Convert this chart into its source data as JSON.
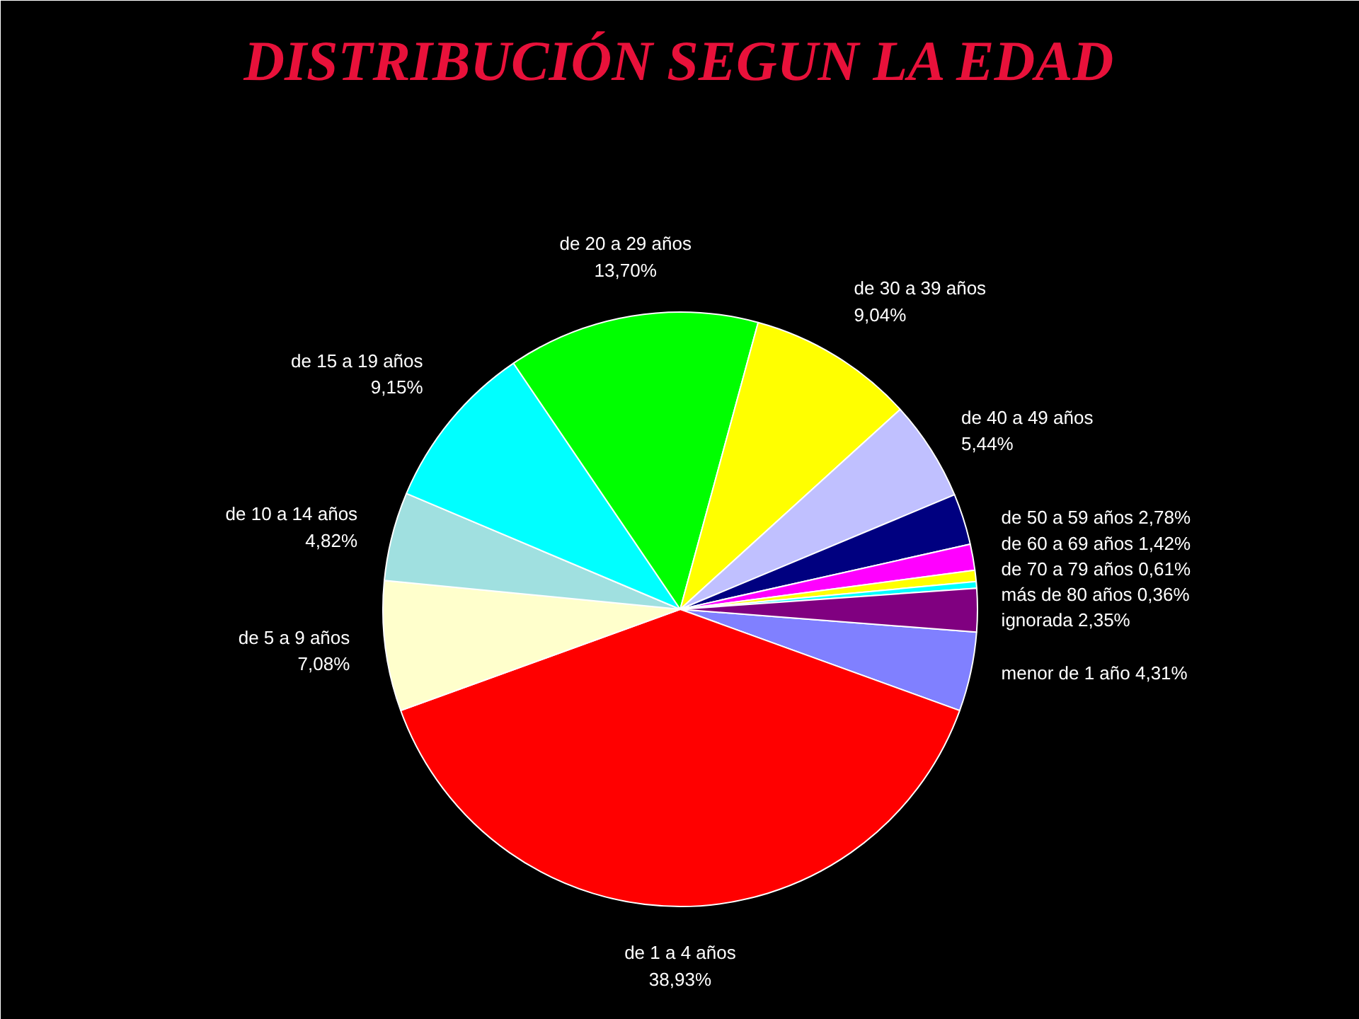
{
  "chart_data": {
    "type": "pie",
    "title": "DISTRIBUCIÓN SEGUN LA EDAD",
    "categories": [
      "menor de 1 año",
      "de 1 a 4 años",
      "de 5 a 9 años",
      "de 10 a 14 años",
      "de 15 a 19 años",
      "de 20 a 29 años",
      "de 30 a 39 años",
      "de 40 a 49 años",
      "de 50 a 59 años",
      "de 60 a 69 años",
      "de 70 a 79 años",
      "más de 80 años",
      "ignorada"
    ],
    "values": [
      4.31,
      38.93,
      7.08,
      4.82,
      9.15,
      13.7,
      9.04,
      5.44,
      2.78,
      1.42,
      0.61,
      0.36,
      2.35
    ],
    "value_labels": [
      "4,31%",
      "38,93%",
      "7,08%",
      "4,82%",
      "9,15%",
      "13,70%",
      "9,04%",
      "5,44%",
      "2,78%",
      "1,42%",
      "0,61%",
      "0,36%",
      "2,35%"
    ],
    "colors": [
      "#8080ff",
      "#ff0000",
      "#ffffcc",
      "#a0e0e0",
      "#00ffff",
      "#00ff00",
      "#ffff00",
      "#c0c0ff",
      "#000080",
      "#ff00ff",
      "#ffff00",
      "#00ffff",
      "#800080"
    ]
  }
}
